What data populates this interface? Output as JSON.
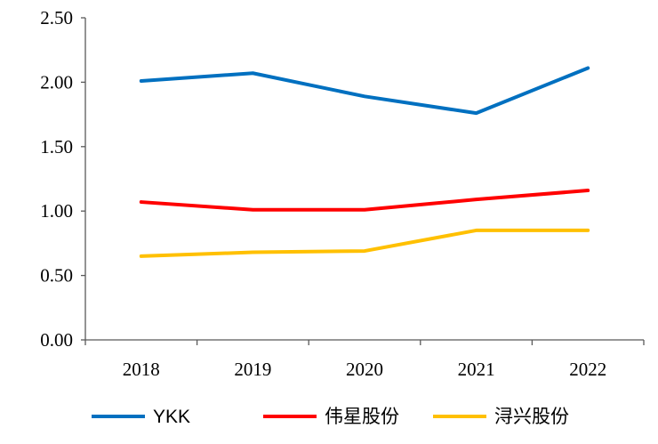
{
  "chart_data": {
    "type": "line",
    "categories": [
      "2018",
      "2019",
      "2020",
      "2021",
      "2022"
    ],
    "ylim": [
      0,
      2.5
    ],
    "yticks": [
      "0.00",
      "0.50",
      "1.00",
      "1.50",
      "2.00",
      "2.50"
    ],
    "grid": false,
    "legend_position": "bottom",
    "series": [
      {
        "name": "YKK",
        "color": "#0070C0",
        "values": [
          2.01,
          2.07,
          1.89,
          1.76,
          2.11
        ]
      },
      {
        "name": "伟星股份",
        "color": "#FF0000",
        "values": [
          1.07,
          1.01,
          1.01,
          1.09,
          1.16
        ]
      },
      {
        "name": "浔兴股份",
        "color": "#FFC000",
        "values": [
          0.65,
          0.68,
          0.69,
          0.85,
          0.85
        ]
      }
    ]
  }
}
